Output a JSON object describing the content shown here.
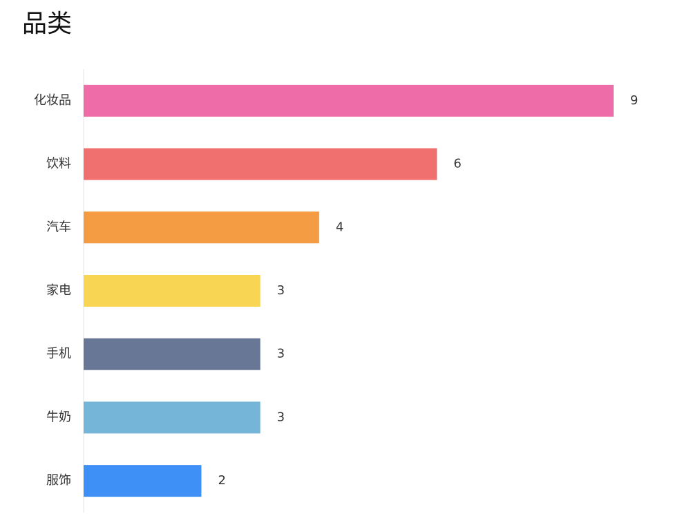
{
  "chart_data": {
    "type": "hbar",
    "title": "品类",
    "categories": [
      "化妆品",
      "饮料",
      "汽车",
      "家电",
      "手机",
      "牛奶",
      "服饰"
    ],
    "values": [
      9,
      6,
      4,
      3,
      3,
      3,
      2
    ],
    "colors": [
      "#ee6ca8",
      "#ef706e",
      "#f39c43",
      "#f8d553",
      "#687795",
      "#74b5d8",
      "#3e8ff6"
    ],
    "xlim": [
      0,
      9
    ]
  }
}
